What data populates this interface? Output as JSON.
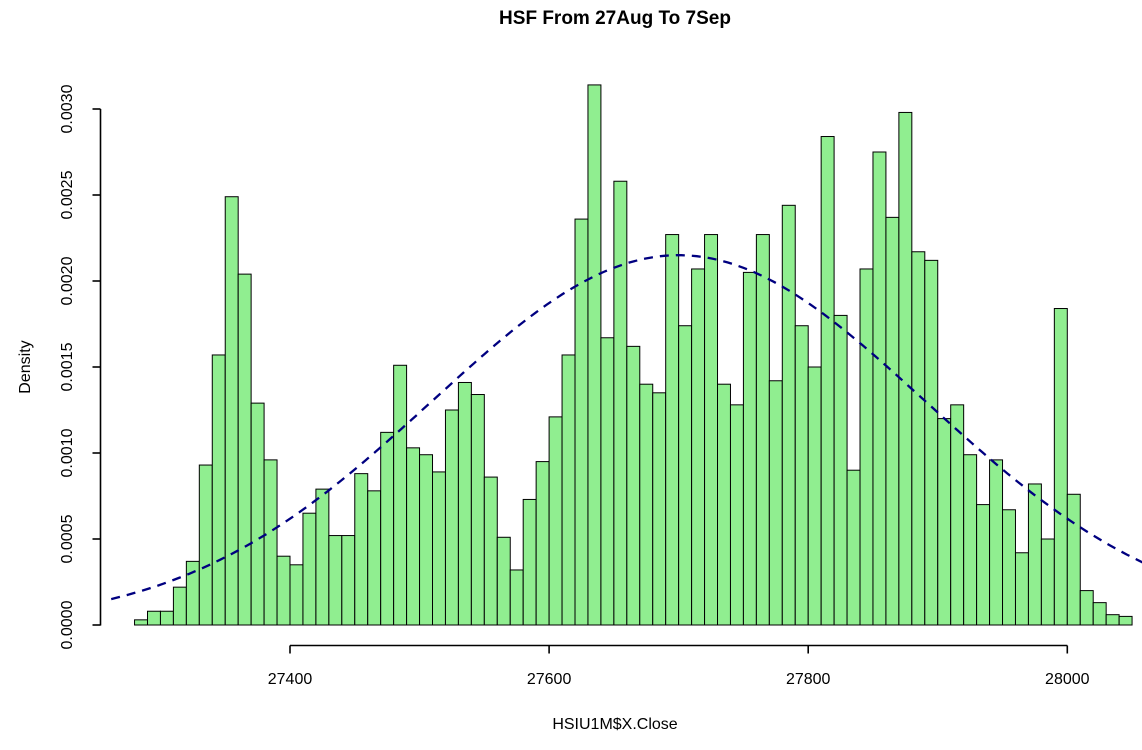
{
  "title": "HSF From 27Aug To 7Sep",
  "chart_data": {
    "type": "bar",
    "subtype": "histogram-with-density-curve",
    "title": "HSF From 27Aug To 7Sep",
    "xlabel": "HSIU1M$X.Close",
    "ylabel": "Density",
    "bin_start": 27280,
    "bin_width": 10,
    "values": [
      3e-05,
      8e-05,
      8e-05,
      0.00022,
      0.00037,
      0.00093,
      0.00157,
      0.00249,
      0.00204,
      0.00129,
      0.00096,
      0.0004,
      0.00035,
      0.00065,
      0.00079,
      0.00052,
      0.00052,
      0.00088,
      0.00078,
      0.00112,
      0.00151,
      0.00103,
      0.00099,
      0.00089,
      0.00125,
      0.00141,
      0.00134,
      0.00086,
      0.00051,
      0.00032,
      0.00073,
      0.00095,
      0.00121,
      0.00157,
      0.00236,
      0.00314,
      0.00167,
      0.00258,
      0.00162,
      0.0014,
      0.00135,
      0.00227,
      0.00174,
      0.00207,
      0.00227,
      0.0014,
      0.00128,
      0.00205,
      0.00227,
      0.00142,
      0.00244,
      0.00174,
      0.0015,
      0.00284,
      0.0018,
      0.0009,
      0.00207,
      0.00275,
      0.00237,
      0.00298,
      0.00217,
      0.00212,
      0.0012,
      0.00128,
      0.00099,
      0.0007,
      0.00096,
      0.00067,
      0.00042,
      0.00082,
      0.0005,
      0.00184,
      0.00076,
      0.0002,
      0.00013,
      6e-05,
      5e-05
    ],
    "x_ticks": [
      27400,
      27600,
      27800,
      28000
    ],
    "x_tick_labels": [
      "27400",
      "27600",
      "27800",
      "28000"
    ],
    "y_ticks": [
      0.0,
      0.0005,
      0.001,
      0.0015,
      0.002,
      0.0025,
      0.003
    ],
    "y_tick_labels": [
      "0.0000",
      "0.0005",
      "0.0010",
      "0.0015",
      "0.0020",
      "0.0025",
      "0.0030"
    ],
    "xlim": [
      27280,
      28050
    ],
    "ylim": [
      0,
      0.00314
    ],
    "grid": "off",
    "legend": "none",
    "bar_fill": "#90EE90",
    "bar_border": "#000000",
    "curve": {
      "type": "normal-density",
      "mean": 27700,
      "sd": 190,
      "peak": 0.00215,
      "color": "#000080",
      "style": "dashed",
      "x_start": 27262,
      "x_end": 28062
    }
  }
}
